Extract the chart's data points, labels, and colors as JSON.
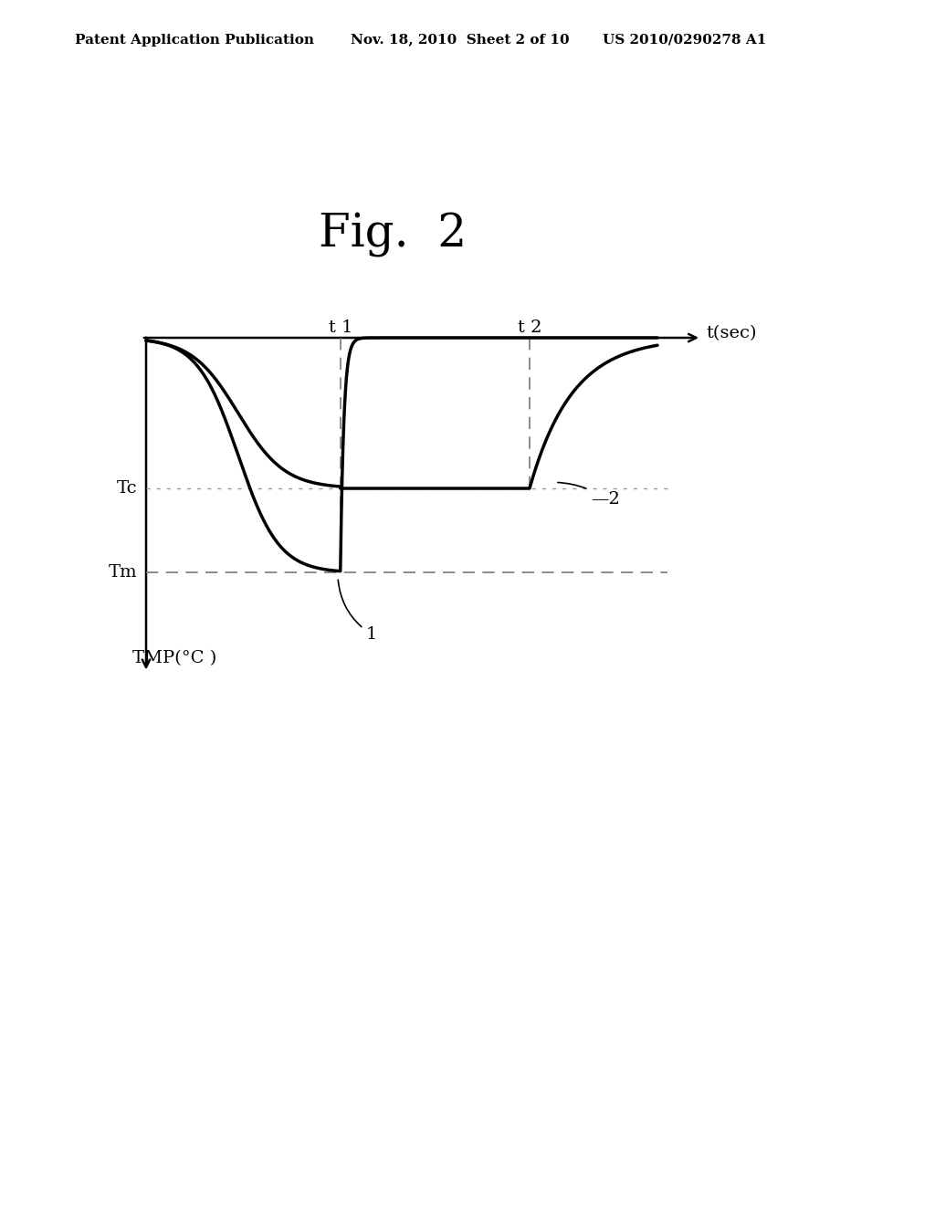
{
  "fig_label": "Fig.  2",
  "header_left": "Patent Application Publication",
  "header_mid": "Nov. 18, 2010  Sheet 2 of 10",
  "header_right": "US 2010/0290278 A1",
  "ylabel": "TMP( °C )",
  "xlabel": "t(sec)",
  "Tm_label": "Tm",
  "Tc_label": "Tc",
  "t1_label": "t 1",
  "t2_label": "t 2",
  "curve1_label": "1",
  "curve2_label": "2",
  "background_color": "#ffffff",
  "line_color": "#000000",
  "t1": 3.8,
  "t2": 7.5,
  "Tm": 7.8,
  "Tc": 5.0
}
